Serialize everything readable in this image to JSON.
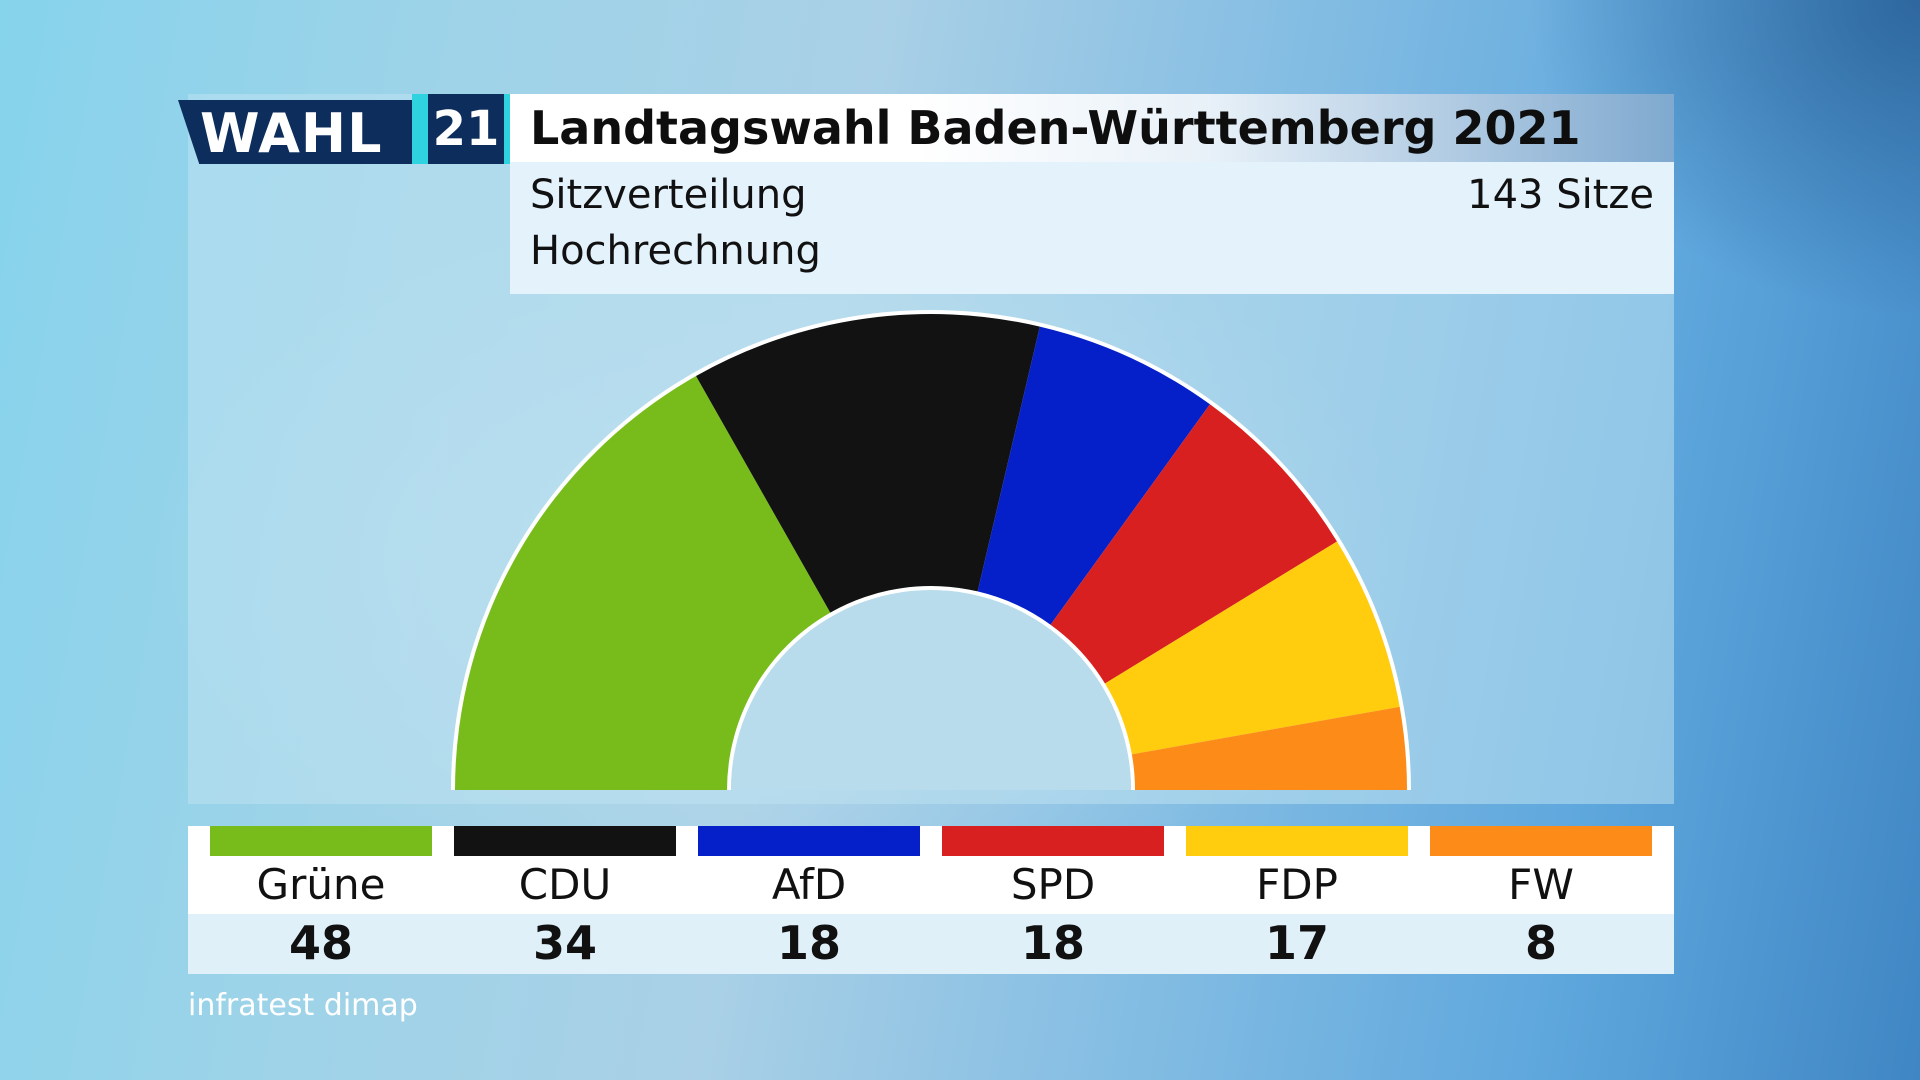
{
  "header": {
    "logo_text": "WAHL",
    "logo_year": "21",
    "title": "Landtagswahl Baden-Württemberg 2021",
    "subtitle_line1": "Sitzverteilung",
    "subtitle_line2": "Hochrechnung",
    "total_seats_label": "143 Sitze"
  },
  "chart_data": {
    "type": "pie",
    "variant": "half-donut parliament",
    "total_seats": 143,
    "categories": [
      "Grüne",
      "CDU",
      "AfD",
      "SPD",
      "FDP",
      "FW"
    ],
    "values": [
      48,
      34,
      18,
      18,
      17,
      8
    ],
    "colors": [
      "#78bc1c",
      "#121212",
      "#0520c8",
      "#d82020",
      "#ffcc0e",
      "#fd8b17"
    ]
  },
  "source": "infratest dimap"
}
